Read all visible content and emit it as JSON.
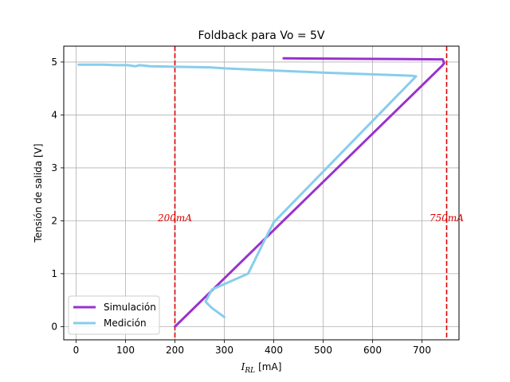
{
  "chart_data": {
    "type": "line",
    "title": "Foldback para Vo = 5V",
    "xlabel": "I_{RL} [mA]",
    "xlabel_main": "I",
    "xlabel_sub": "RL",
    "xlabel_unit": "[mA]",
    "ylabel": "Tensión de salida [V]",
    "xlim": [
      -25,
      775
    ],
    "ylim": [
      -0.25,
      5.3
    ],
    "xticks": [
      0,
      100,
      200,
      300,
      400,
      500,
      600,
      700
    ],
    "yticks": [
      0,
      1,
      2,
      3,
      4,
      5
    ],
    "grid": true,
    "legend_position": "lower-left",
    "series": [
      {
        "name": "Simulación",
        "color": "#9932CC",
        "x": [
          200,
          741,
          745,
          742,
          420
        ],
        "y": [
          0.0,
          4.93,
          4.98,
          5.05,
          5.07
        ]
      },
      {
        "name": "Medición",
        "color": "#87CEEB",
        "x": [
          300,
          275,
          262,
          275,
          348,
          385,
          400,
          688,
          680,
          500,
          400,
          300,
          270,
          200,
          150,
          128,
          120,
          105,
          80,
          55,
          30,
          5
        ],
        "y": [
          0.18,
          0.35,
          0.47,
          0.7,
          1.0,
          1.7,
          1.97,
          4.73,
          4.74,
          4.8,
          4.84,
          4.88,
          4.9,
          4.91,
          4.92,
          4.94,
          4.92,
          4.94,
          4.94,
          4.95,
          4.95,
          4.95
        ]
      }
    ],
    "vlines": [
      {
        "x": 200,
        "color": "#DD0000",
        "style": "dashed",
        "label": "200mA",
        "label_y": 2.05
      },
      {
        "x": 750,
        "color": "#DD0000",
        "style": "dashed",
        "label": "750mA",
        "label_y": 2.05
      }
    ]
  }
}
